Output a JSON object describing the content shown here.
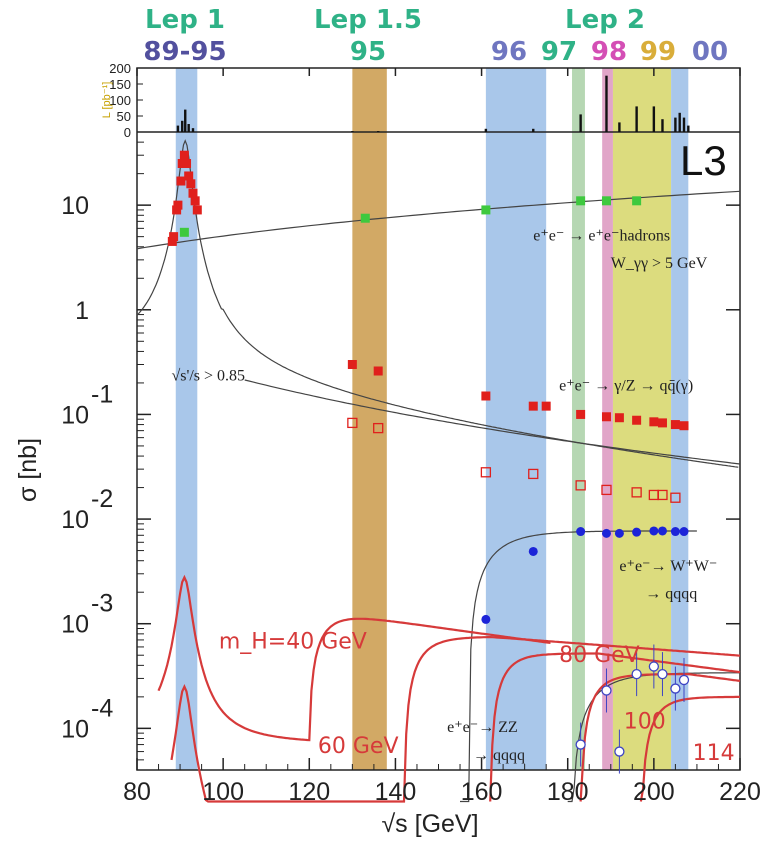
{
  "chart_data": {
    "type": "scatter",
    "xlabel": "√s [GeV]",
    "ylabel": "σ [nb]",
    "xlim": [
      80,
      220
    ],
    "ylim": [
      4e-05,
      50
    ],
    "yscale": "log",
    "xticks": [
      80,
      100,
      120,
      140,
      160,
      180,
      200,
      220
    ],
    "yticks": [
      {
        "value": 10,
        "base": "10",
        "exp": ""
      },
      {
        "value": 1,
        "base": "1",
        "exp": ""
      },
      {
        "value": 0.1,
        "base": "10",
        "exp": "-1"
      },
      {
        "value": 0.01,
        "base": "10",
        "exp": "-2"
      },
      {
        "value": 0.001,
        "base": "10",
        "exp": "-3"
      },
      {
        "value": 0.0001,
        "base": "10",
        "exp": "-4"
      }
    ],
    "experiment_label": "L3",
    "lumi_axis": {
      "label": "L [pb⁻¹]",
      "ticks": [
        0,
        50,
        100,
        150,
        200
      ]
    },
    "header": [
      {
        "label": "Lep 1",
        "color": "#2fb287",
        "x": 90
      },
      {
        "label": "89-95",
        "color": "#52509e",
        "x": 90
      },
      {
        "label": "Lep 1.5",
        "color": "#2fb287",
        "x": 133
      },
      {
        "label": "95",
        "color": "#2fb287",
        "x": 133
      },
      {
        "label": "Lep 2",
        "color": "#2fb287",
        "x": 195
      },
      {
        "label": "96",
        "color": "#6f76c0",
        "x": 165
      },
      {
        "label": "97",
        "color": "#2fb287",
        "x": 181
      },
      {
        "label": "98",
        "color": "#d44fb5",
        "x": 190
      },
      {
        "label": "99",
        "color": "#d9ad3a",
        "x": 197
      },
      {
        "label": "00",
        "color": "#6f76c0",
        "x": 206
      }
    ],
    "bands": [
      {
        "x0": 89,
        "x1": 94,
        "color": "#a9c7ea"
      },
      {
        "x0": 130,
        "x1": 138,
        "color": "#d2a965"
      },
      {
        "x0": 161,
        "x1": 175,
        "color": "#a9c7ea"
      },
      {
        "x0": 181,
        "x1": 184,
        "color": "#b6d7b3"
      },
      {
        "x0": 188,
        "x1": 190.5,
        "color": "#e1a5c8"
      },
      {
        "x0": 190.5,
        "x1": 204,
        "color": "#dcdc7e"
      },
      {
        "x0": 204,
        "x1": 208,
        "color": "#a9c7ea"
      }
    ],
    "lumi_bars": [
      {
        "x": 89.5,
        "value": 20
      },
      {
        "x": 90.5,
        "value": 35
      },
      {
        "x": 91.2,
        "value": 70
      },
      {
        "x": 92,
        "value": 25
      },
      {
        "x": 93,
        "value": 12
      },
      {
        "x": 130,
        "value": 3
      },
      {
        "x": 136,
        "value": 3
      },
      {
        "x": 161,
        "value": 10
      },
      {
        "x": 172,
        "value": 10
      },
      {
        "x": 183,
        "value": 55
      },
      {
        "x": 189,
        "value": 176
      },
      {
        "x": 192,
        "value": 30
      },
      {
        "x": 196,
        "value": 80
      },
      {
        "x": 200,
        "value": 80
      },
      {
        "x": 202,
        "value": 40
      },
      {
        "x": 205,
        "value": 45
      },
      {
        "x": 206,
        "value": 60
      },
      {
        "x": 207,
        "value": 45
      },
      {
        "x": 208,
        "value": 20
      }
    ],
    "series": [
      {
        "name": "e⁺e⁻ → e⁺e⁻hadrons",
        "color": "#3ec93e",
        "marker": "square",
        "points": [
          [
            91,
            5.5
          ],
          [
            133,
            7.5
          ],
          [
            161,
            9
          ],
          [
            183,
            11
          ],
          [
            189,
            11
          ],
          [
            196,
            11
          ]
        ]
      },
      {
        "name": "e⁺e⁻ → γ/Z → qq̄(γ)",
        "color": "#e0201c",
        "marker": "square",
        "points": [
          [
            88.2,
            4.5
          ],
          [
            88.5,
            5
          ],
          [
            89.2,
            9
          ],
          [
            89.5,
            10
          ],
          [
            90.2,
            17
          ],
          [
            90.5,
            25
          ],
          [
            91,
            30
          ],
          [
            91.5,
            25
          ],
          [
            92,
            19
          ],
          [
            92.5,
            16
          ],
          [
            93,
            13
          ],
          [
            93.5,
            11
          ],
          [
            94,
            9
          ],
          [
            130,
            0.3
          ],
          [
            136,
            0.26
          ],
          [
            161,
            0.15
          ],
          [
            172,
            0.12
          ],
          [
            175,
            0.12
          ],
          [
            183,
            0.1
          ],
          [
            189,
            0.095
          ],
          [
            192,
            0.093
          ],
          [
            196,
            0.088
          ],
          [
            200,
            0.085
          ],
          [
            202,
            0.083
          ],
          [
            205,
            0.08
          ],
          [
            207,
            0.078
          ]
        ]
      },
      {
        "name": "√s'/s > 0.85",
        "color": "#e0201c",
        "marker": "open-square",
        "points": [
          [
            130,
            0.083
          ],
          [
            136,
            0.074
          ],
          [
            161,
            0.028
          ],
          [
            172,
            0.027
          ],
          [
            183,
            0.021
          ],
          [
            189,
            0.019
          ],
          [
            196,
            0.018
          ],
          [
            200,
            0.017
          ],
          [
            202,
            0.017
          ],
          [
            205,
            0.016
          ]
        ]
      },
      {
        "name": "e⁺e⁻ → W⁺W⁻ → qqqq",
        "color": "#1c24d8",
        "marker": "circle",
        "points": [
          [
            161,
            0.0011
          ],
          [
            172,
            0.0049
          ],
          [
            183,
            0.0076
          ],
          [
            189,
            0.0073
          ],
          [
            192,
            0.0073
          ],
          [
            196,
            0.0075
          ],
          [
            200,
            0.0077
          ],
          [
            202,
            0.0077
          ],
          [
            205,
            0.0076
          ],
          [
            207,
            0.0076
          ]
        ]
      },
      {
        "name": "e⁺e⁻ → ZZ → qqqq",
        "color": "#3d44c4",
        "marker": "open-circle",
        "points": [
          [
            183,
            7e-05
          ],
          [
            189,
            0.00023
          ],
          [
            192,
            6e-05
          ],
          [
            196,
            0.00033
          ],
          [
            200,
            0.00039
          ],
          [
            202,
            0.00033
          ],
          [
            205,
            0.00024
          ],
          [
            207,
            0.00029
          ]
        ]
      }
    ],
    "annotations": [
      {
        "text": "e⁺e⁻ → e⁺e⁻hadrons",
        "x": 172,
        "y": 4.6
      },
      {
        "text": "W_γγ > 5 GeV",
        "x": 190,
        "y": 2.5
      },
      {
        "text": "e⁺e⁻ → γ/Z → qq̄(γ)",
        "x": 178,
        "y": 0.17
      },
      {
        "text": "√s'/s > 0.85",
        "x": 88,
        "y": 0.21
      },
      {
        "text": "e⁺e⁻→ W⁺W⁻",
        "x": 192,
        "y": 0.0032
      },
      {
        "text": "→ qqqq",
        "x": 198,
        "y": 0.00175
      },
      {
        "text": "e⁺e⁻→ ZZ",
        "x": 152,
        "y": 9.2e-05
      },
      {
        "text": "→ qqqq",
        "x": 158,
        "y": 5e-05
      }
    ],
    "higgs_labels": [
      {
        "text": "m_H=40 GeV",
        "x": 99,
        "y": 0.00058
      },
      {
        "text": "60 GeV",
        "x": 122,
        "y": 5.8e-05
      },
      {
        "text": "80 GeV",
        "x": 178,
        "y": 0.00043
      },
      {
        "text": "100",
        "x": 193,
        "y": 0.0001
      },
      {
        "text": "114",
        "x": 209,
        "y": 5e-05
      }
    ]
  }
}
